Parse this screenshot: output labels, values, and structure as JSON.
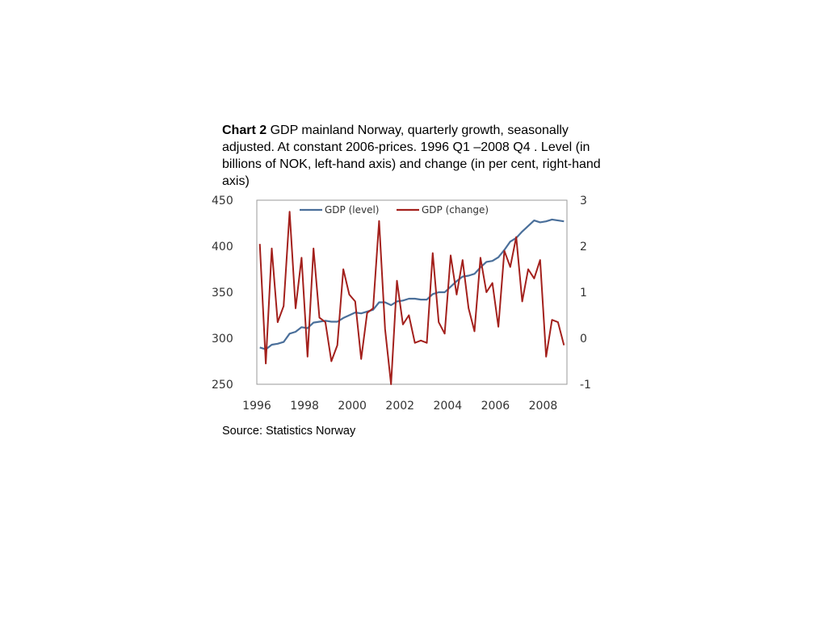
{
  "caption": {
    "label": "Chart 2",
    "text": " GDP mainland Norway, quarterly growth, seasonally adjusted.  At constant 2006-prices. 1996 Q1 –2008 Q4 . Level (in billions of NOK, left-hand axis) and change (in per cent, right-hand axis)"
  },
  "source": "Source: Statistics Norway",
  "chart_data": {
    "type": "line",
    "x_start": "1996 Q1",
    "x_end": "2008 Q4",
    "x_ticks": [
      "1996",
      "1998",
      "2000",
      "2002",
      "2004",
      "2006",
      "2008"
    ],
    "x_tick_years": [
      1996,
      1998,
      2000,
      2002,
      2004,
      2006,
      2008
    ],
    "y_left": {
      "range": [
        250,
        450
      ],
      "ticks": [
        "450",
        "400",
        "350",
        "300",
        "250"
      ],
      "tick_values": [
        450,
        400,
        350,
        300,
        250
      ]
    },
    "y_right": {
      "range": [
        -1,
        3
      ],
      "ticks": [
        "3",
        "2",
        "1",
        "0",
        "-1"
      ],
      "tick_values": [
        3,
        2,
        1,
        0,
        -1
      ]
    },
    "legend_position": "top",
    "grid": false,
    "series": [
      {
        "name": "GDP (level)",
        "axis": "left",
        "color": "#4a6f9a",
        "values": [
          290,
          288,
          293,
          294,
          296,
          305,
          307,
          312,
          311,
          317,
          318,
          319,
          318,
          318,
          322,
          325,
          328,
          327,
          329,
          331,
          339,
          339,
          336,
          340,
          341,
          343,
          343,
          342,
          342,
          348,
          350,
          350,
          356,
          362,
          367,
          368,
          370,
          377,
          383,
          384,
          388,
          396,
          405,
          409,
          416,
          422,
          428,
          426,
          427,
          429,
          428,
          427
        ]
      },
      {
        "name": "GDP (change)",
        "axis": "right",
        "color": "#a3201c",
        "values": [
          2.05,
          -0.55,
          1.95,
          0.35,
          0.7,
          2.75,
          0.65,
          1.75,
          -0.4,
          1.95,
          0.45,
          0.35,
          -0.5,
          -0.15,
          1.5,
          0.95,
          0.8,
          -0.45,
          0.55,
          0.65,
          2.55,
          0.2,
          -1.0,
          1.25,
          0.3,
          0.5,
          -0.1,
          -0.05,
          -0.1,
          1.85,
          0.35,
          0.1,
          1.8,
          0.95,
          1.7,
          0.65,
          0.15,
          1.75,
          1.0,
          1.2,
          0.25,
          1.9,
          1.55,
          2.2,
          0.8,
          1.5,
          1.3,
          1.7,
          -0.4,
          0.4,
          0.35,
          -0.15
        ]
      }
    ]
  }
}
